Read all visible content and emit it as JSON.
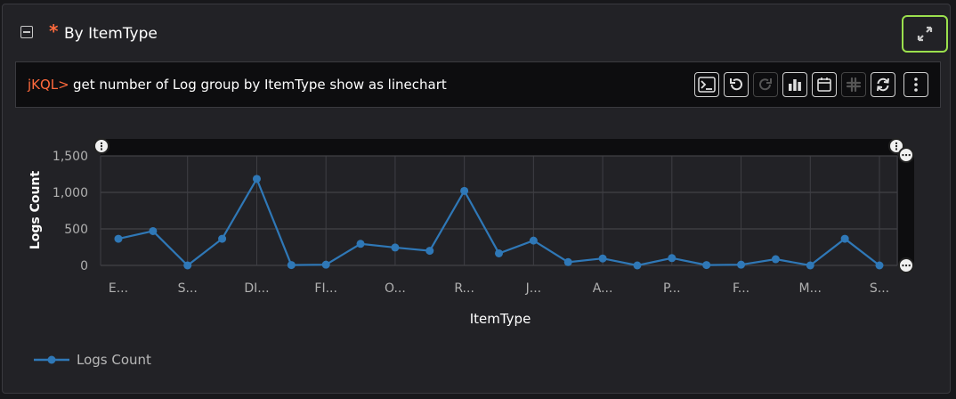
{
  "widget": {
    "title_star": "*",
    "title": "By ItemType"
  },
  "query": {
    "prefix": "jKQL>",
    "text": "get number of Log group by ItemType show as linechart"
  },
  "toolbar": {
    "icons": [
      "terminal-icon",
      "undo-icon",
      "redo-icon",
      "bar-chart-icon",
      "calendar-icon",
      "slack-icon",
      "refresh-icon",
      "more-vertical-icon"
    ]
  },
  "chart_data": {
    "type": "line",
    "xlabel": "ItemType",
    "ylabel": "Logs Count",
    "ylim": [
      0,
      1500
    ],
    "yticks": [
      "1,500",
      "1,000",
      "500",
      "0"
    ],
    "categories": [
      "E...",
      "",
      "S...",
      "",
      "DI...",
      "",
      "FI...",
      "",
      "O...",
      "",
      "R...",
      "",
      "J...",
      "",
      "A...",
      "",
      "P...",
      "",
      "F...",
      "",
      "M...",
      "",
      "S..."
    ],
    "series": [
      {
        "name": "Logs Count",
        "color": "#2f78b7",
        "values": [
          365,
          470,
          0,
          365,
          1185,
          5,
          10,
          295,
          245,
          200,
          1020,
          165,
          340,
          45,
          95,
          0,
          100,
          5,
          10,
          85,
          0,
          365,
          0
        ]
      }
    ],
    "legend": "bottom-left",
    "grid": true
  }
}
